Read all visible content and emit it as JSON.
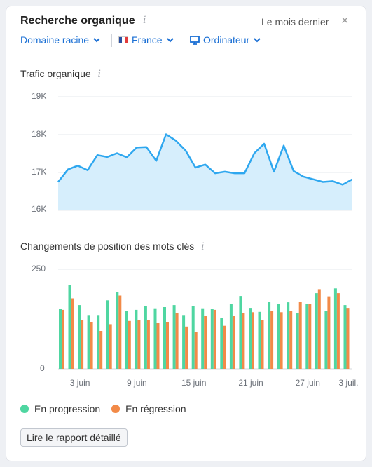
{
  "header": {
    "title": "Recherche organique",
    "period": "Le mois dernier",
    "close_icon": "×",
    "filters": {
      "domain": "Domaine racine",
      "country": "France",
      "device": "Ordinateur"
    }
  },
  "traffic": {
    "title": "Trafic organique",
    "yticks": [
      "19K",
      "18K",
      "17K",
      "16K"
    ]
  },
  "positions": {
    "title": "Changements de position des mots clés",
    "yticks": [
      "250",
      "0"
    ],
    "xticks": [
      "3 juin",
      "9 juin",
      "15 juin",
      "21 juin",
      "27 juin",
      "3 juil."
    ],
    "legend": {
      "up": "En progression",
      "down": "En régression"
    }
  },
  "button": {
    "label": "Lire le rapport détaillé"
  },
  "colors": {
    "accent": "#1a6fd4",
    "line": "#2ea7ef",
    "area": "#d6eefc",
    "up": "#4fd6a1",
    "down": "#f28a48"
  },
  "chart_data": [
    {
      "type": "area",
      "title": "Trafic organique",
      "ylim": [
        16000,
        19000
      ],
      "yticks": [
        16000,
        17000,
        18000,
        19000
      ],
      "grid": true,
      "values": [
        16750,
        17080,
        17180,
        17060,
        17460,
        17410,
        17510,
        17400,
        17660,
        17670,
        17310,
        18010,
        17840,
        17580,
        17130,
        17210,
        16980,
        17020,
        16980,
        16980,
        17510,
        17760,
        17020,
        17710,
        17040,
        16890,
        16820,
        16750,
        16770,
        16680,
        16820
      ]
    },
    {
      "type": "bar",
      "title": "Changements de position des mots clés",
      "ylim": [
        0,
        250
      ],
      "yticks": [
        0,
        250
      ],
      "x_labels": [
        "3 juin",
        "9 juin",
        "15 juin",
        "21 juin",
        "27 juin",
        "3 juil."
      ],
      "legend_position": "bottom-left",
      "series": [
        {
          "name": "En progression",
          "values": [
            150,
            210,
            160,
            135,
            135,
            172,
            192,
            145,
            148,
            158,
            152,
            155,
            160,
            135,
            158,
            152,
            150,
            128,
            162,
            183,
            153,
            143,
            168,
            162,
            167,
            140,
            162,
            190,
            145,
            202,
            160
          ]
        },
        {
          "name": "En régression",
          "values": [
            148,
            177,
            123,
            118,
            95,
            112,
            184,
            120,
            123,
            122,
            115,
            118,
            140,
            106,
            92,
            133,
            148,
            108,
            132,
            140,
            142,
            122,
            145,
            142,
            145,
            168,
            162,
            200,
            182,
            190,
            153
          ]
        }
      ]
    }
  ]
}
